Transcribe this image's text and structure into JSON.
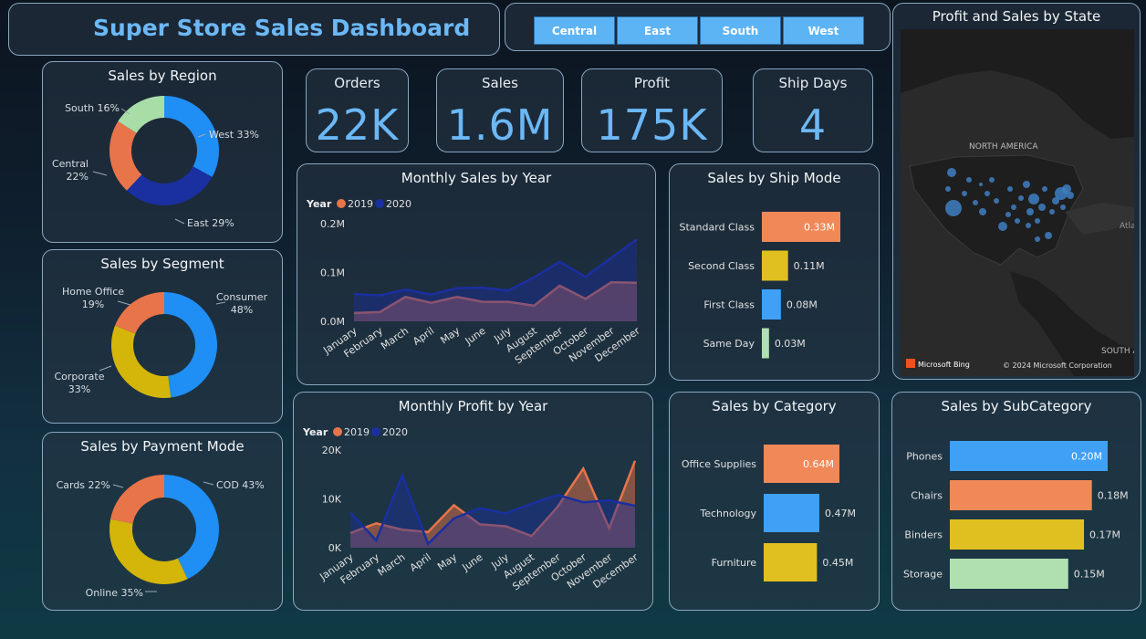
{
  "header": {
    "title": "Super Store Sales Dashboard"
  },
  "slicer": {
    "items": [
      "Central",
      "East",
      "South",
      "West"
    ]
  },
  "kpis": [
    {
      "label": "Orders",
      "value": "22K"
    },
    {
      "label": "Sales",
      "value": "1.6M"
    },
    {
      "label": "Profit",
      "value": "175K"
    },
    {
      "label": "Ship Days",
      "value": "4"
    }
  ],
  "colors": {
    "blue": "#1f8ef5",
    "navy": "#1a2fa0",
    "orange": "#e8744a",
    "yellow": "#d4b60a",
    "green": "#a8dda8",
    "slicer": "#5db4f5",
    "kpi": "#6cb8f5",
    "bar_blue": "#40a0f5",
    "bar_orange": "#f08858",
    "bar_yellow": "#e0c020",
    "bar_green": "#b0e0b0"
  },
  "map": {
    "title": "Profit and Sales by State",
    "region_label": "NORTH AMERICA",
    "region_label2": "SOUTH A",
    "edge_label": "Atla",
    "bing": "Microsoft Bing",
    "copyright": "© 2024 Microsoft Corporation"
  },
  "chart_data": [
    {
      "id": "region",
      "type": "pie",
      "title": "Sales by Region",
      "slices": [
        {
          "label": "West",
          "value": 33
        },
        {
          "label": "East",
          "value": 29
        },
        {
          "label": "Central",
          "value": 22
        },
        {
          "label": "South",
          "value": 16
        }
      ]
    },
    {
      "id": "segment",
      "type": "pie",
      "title": "Sales by Segment",
      "slices": [
        {
          "label": "Consumer",
          "value": 48
        },
        {
          "label": "Corporate",
          "value": 33
        },
        {
          "label": "Home Office",
          "value": 19
        }
      ]
    },
    {
      "id": "payment",
      "type": "pie",
      "title": "Sales by Payment Mode",
      "slices": [
        {
          "label": "COD",
          "value": 43
        },
        {
          "label": "Online",
          "value": 35
        },
        {
          "label": "Cards",
          "value": 22
        }
      ]
    },
    {
      "id": "monthly_sales",
      "type": "area",
      "title": "Monthly Sales by Year",
      "legend_title": "Year",
      "categories": [
        "January",
        "February",
        "March",
        "April",
        "May",
        "June",
        "July",
        "August",
        "September",
        "October",
        "November",
        "December"
      ],
      "series": [
        {
          "name": "2019",
          "values": [
            0.017,
            0.019,
            0.05,
            0.038,
            0.05,
            0.04,
            0.04,
            0.032,
            0.073,
            0.046,
            0.08,
            0.079
          ]
        },
        {
          "name": "2020",
          "values": [
            0.056,
            0.053,
            0.065,
            0.055,
            0.068,
            0.069,
            0.063,
            0.09,
            0.122,
            0.091,
            0.13,
            0.168
          ]
        }
      ],
      "yticks": [
        0.0,
        0.1,
        0.2
      ],
      "ytick_labels": [
        "0.0M",
        "0.1M",
        "0.2M"
      ],
      "ylim": [
        0,
        0.2
      ]
    },
    {
      "id": "monthly_profit",
      "type": "area",
      "title": "Monthly Profit by Year",
      "legend_title": "Year",
      "categories": [
        "January",
        "February",
        "March",
        "April",
        "May",
        "June",
        "July",
        "August",
        "September",
        "October",
        "November",
        "December"
      ],
      "series": [
        {
          "name": "2019",
          "values": [
            3000,
            5000,
            3700,
            3200,
            8700,
            4800,
            4400,
            2400,
            8300,
            16200,
            4000,
            17800
          ]
        },
        {
          "name": "2020",
          "values": [
            7200,
            1500,
            14800,
            800,
            6000,
            8100,
            7000,
            9000,
            10800,
            9300,
            9700,
            8600
          ]
        }
      ],
      "yticks": [
        0,
        10000,
        20000
      ],
      "ytick_labels": [
        "0K",
        "10K",
        "20K"
      ],
      "ylim": [
        0,
        20000
      ]
    },
    {
      "id": "ship_mode",
      "type": "bar",
      "title": "Sales by Ship Mode",
      "categories": [
        "Standard Class",
        "Second Class",
        "First Class",
        "Same Day"
      ],
      "values": [
        0.33,
        0.11,
        0.08,
        0.03
      ],
      "value_labels": [
        "0.33M",
        "0.11M",
        "0.08M",
        "0.03M"
      ]
    },
    {
      "id": "category",
      "type": "bar",
      "title": "Sales by Category",
      "categories": [
        "Office Supplies",
        "Technology",
        "Furniture"
      ],
      "values": [
        0.64,
        0.47,
        0.45
      ],
      "value_labels": [
        "0.64M",
        "0.47M",
        "0.45M"
      ]
    },
    {
      "id": "subcategory",
      "type": "bar",
      "title": "Sales by SubCategory",
      "categories": [
        "Phones",
        "Chairs",
        "Binders",
        "Storage"
      ],
      "values": [
        0.2,
        0.18,
        0.17,
        0.15
      ],
      "value_labels": [
        "0.20M",
        "0.18M",
        "0.17M",
        "0.15M"
      ]
    }
  ]
}
